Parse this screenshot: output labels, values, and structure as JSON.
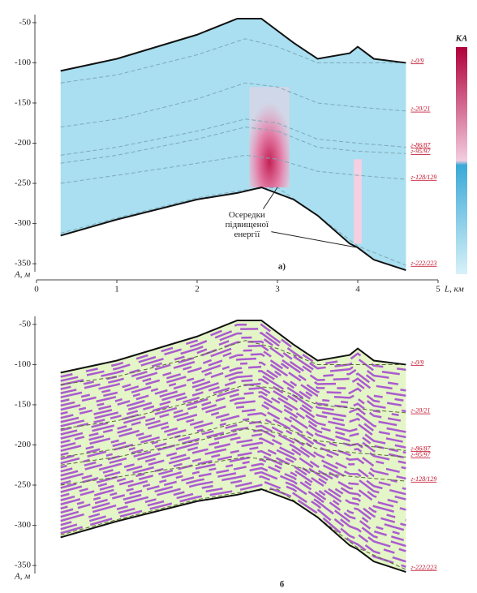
{
  "chart_data": [
    {
      "type": "section",
      "panel_label": "а)",
      "ylabel": "A, м",
      "xlabel": "L, км",
      "fill": "#a9dff0",
      "line_color": "#7fa8b8",
      "xlim": [
        0,
        5
      ],
      "xticks": [
        0,
        1,
        2,
        3,
        4,
        5
      ],
      "ylim": [
        -360,
        -40
      ],
      "yticks": [
        -50,
        -100,
        -150,
        -200,
        -250,
        -300,
        -350
      ],
      "x": [
        0.3,
        1,
        2,
        2.5,
        2.8,
        3.2,
        3.5,
        3.9,
        4.0,
        4.2,
        4.6
      ],
      "top": [
        -110,
        -95,
        -65,
        -45,
        -45,
        -75,
        -95,
        -88,
        -80,
        -95,
        -100
      ],
      "bottom": [
        -315,
        -295,
        -270,
        -262,
        -255,
        -270,
        -290,
        -325,
        -330,
        -345,
        -358
      ],
      "colorbar_title": "КА",
      "annotation": [
        "Осередки",
        "підвищеної",
        "енергії"
      ],
      "horizon_x": [
        0.3,
        1,
        2,
        2.6,
        3,
        3.5,
        4,
        4.6
      ],
      "horizons": [
        {
          "label": "г-0/9",
          "values": [
            -125,
            -115,
            -90,
            -70,
            -80,
            -100,
            -100,
            -100
          ]
        },
        {
          "label": "г-20/21",
          "values": [
            -180,
            -170,
            -145,
            -125,
            -130,
            -150,
            -155,
            -160
          ]
        },
        {
          "label": "г-86/87",
          "values": [
            -215,
            -205,
            -185,
            -170,
            -175,
            -195,
            -200,
            -205
          ]
        },
        {
          "label": "г-95/97",
          "values": [
            -225,
            -215,
            -195,
            -180,
            -185,
            -205,
            -210,
            -213
          ]
        },
        {
          "label": "г-128/129",
          "values": [
            -250,
            -240,
            -225,
            -215,
            -220,
            -235,
            -240,
            -245
          ]
        },
        {
          "label": "г-222/223",
          "values": [
            -312,
            -293,
            -268,
            -258,
            -255,
            -290,
            -328,
            -352
          ]
        }
      ]
    },
    {
      "type": "section",
      "panel_label": "б",
      "ylabel": "A, м",
      "fill": "#e4f5c8",
      "line_color": "#556b2f",
      "xlim": [
        0,
        5
      ],
      "ylim": [
        -360,
        -40
      ],
      "yticks": [
        -50,
        -100,
        -150,
        -200,
        -250,
        -300,
        -350
      ],
      "x": [
        0.3,
        1,
        2,
        2.5,
        2.8,
        3.2,
        3.5,
        3.9,
        4.0,
        4.2,
        4.6
      ],
      "top": [
        -110,
        -95,
        -65,
        -45,
        -45,
        -75,
        -95,
        -88,
        -80,
        -95,
        -100
      ],
      "bottom": [
        -315,
        -295,
        -270,
        -262,
        -255,
        -270,
        -290,
        -325,
        -330,
        -345,
        -358
      ],
      "horizon_x": [
        0.3,
        1,
        2,
        2.6,
        3,
        3.5,
        4,
        4.6
      ],
      "horizons": [
        {
          "label": "г-0/9",
          "values": [
            -125,
            -115,
            -90,
            -70,
            -80,
            -100,
            -100,
            -100
          ]
        },
        {
          "label": "г-20/21",
          "values": [
            -180,
            -170,
            -145,
            -125,
            -130,
            -150,
            -155,
            -160
          ]
        },
        {
          "label": "г-86/87",
          "values": [
            -215,
            -205,
            -185,
            -170,
            -175,
            -195,
            -200,
            -207
          ]
        },
        {
          "label": "г-95/97",
          "values": [
            -225,
            -215,
            -195,
            -180,
            -185,
            -205,
            -210,
            -215
          ]
        },
        {
          "label": "г-128/129",
          "values": [
            -250,
            -240,
            -225,
            -215,
            -220,
            -235,
            -240,
            -245
          ]
        },
        {
          "label": "г-222/223",
          "values": [
            -312,
            -293,
            -268,
            -258,
            -255,
            -290,
            -328,
            -355
          ]
        }
      ]
    }
  ]
}
